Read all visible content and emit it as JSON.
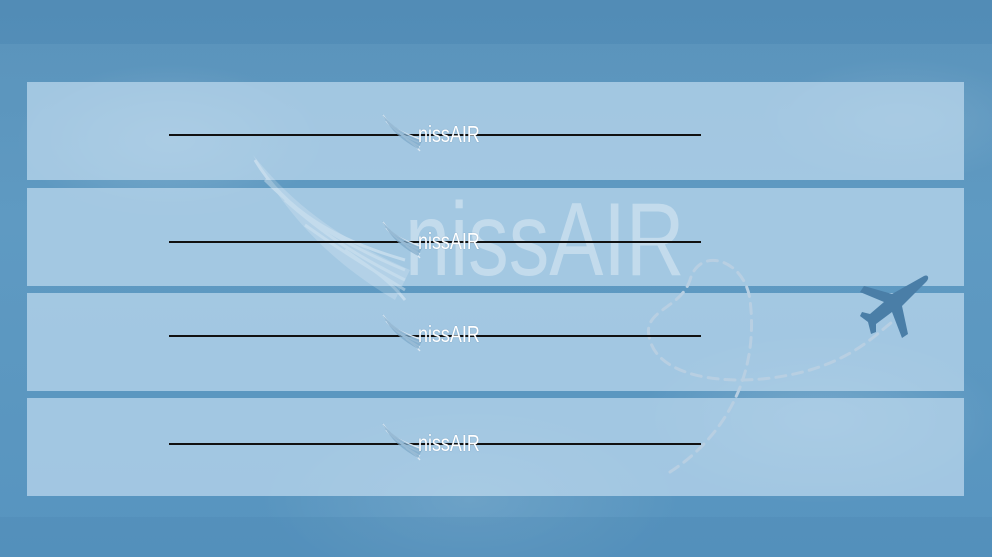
{
  "brand": {
    "name": "nissAIR"
  },
  "panels": [
    {
      "logo_text": "nissAIR"
    },
    {
      "logo_text": "nissAIR"
    },
    {
      "logo_text": "nissAIR"
    },
    {
      "logo_text": "nissAIR"
    }
  ],
  "colors": {
    "background": "#5b95bd",
    "panel": "#bedaee",
    "rule": "#111111",
    "logo_text": "#ffffff"
  },
  "icons": [
    "wing-icon",
    "airplane-icon",
    "heart-route-icon"
  ]
}
